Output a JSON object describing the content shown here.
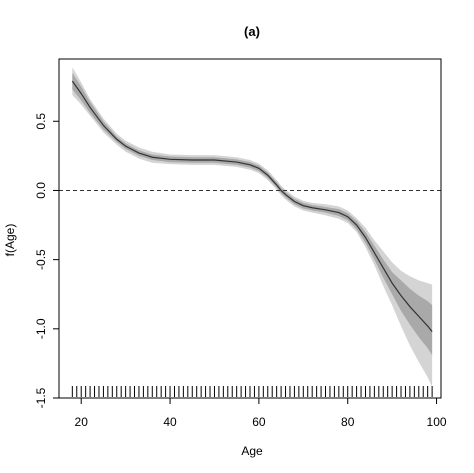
{
  "chart_data": {
    "type": "line",
    "title": "(a)",
    "xlabel": "Age",
    "ylabel": "f(Age)",
    "xlim": [
      15,
      101
    ],
    "ylim": [
      -1.5,
      0.95
    ],
    "x_ticks": [
      20,
      40,
      60,
      80,
      100
    ],
    "y_ticks": [
      -1.5,
      -1.0,
      -0.5,
      0.0,
      0.5
    ],
    "y_tick_labels": [
      "-1.5",
      "-1.0",
      "-0.5",
      "0.0",
      "0.5"
    ],
    "reference_line": {
      "y": 0,
      "style": "dashed"
    },
    "colors": {
      "outer_band": "#d4d4d4",
      "inner_band": "#a9a9a9",
      "line": "#333333"
    },
    "x": [
      18,
      20,
      22,
      25,
      28,
      30,
      33,
      36,
      40,
      45,
      50,
      55,
      58,
      60,
      62,
      64,
      65,
      66,
      68,
      70,
      72,
      75,
      78,
      80,
      82,
      84,
      86,
      88,
      90,
      92,
      94,
      96,
      98,
      99
    ],
    "fit": [
      0.79,
      0.7,
      0.6,
      0.47,
      0.37,
      0.32,
      0.27,
      0.24,
      0.225,
      0.22,
      0.22,
      0.205,
      0.185,
      0.16,
      0.11,
      0.04,
      0.0,
      -0.03,
      -0.08,
      -0.11,
      -0.125,
      -0.14,
      -0.16,
      -0.19,
      -0.25,
      -0.34,
      -0.45,
      -0.56,
      -0.67,
      -0.76,
      -0.84,
      -0.91,
      -0.98,
      -1.02
    ],
    "inner_lower": [
      0.73,
      0.65,
      0.56,
      0.44,
      0.35,
      0.3,
      0.25,
      0.22,
      0.205,
      0.2,
      0.2,
      0.185,
      0.165,
      0.14,
      0.09,
      0.02,
      -0.02,
      -0.05,
      -0.1,
      -0.13,
      -0.145,
      -0.16,
      -0.185,
      -0.215,
      -0.28,
      -0.38,
      -0.5,
      -0.63,
      -0.75,
      -0.87,
      -0.97,
      -1.06,
      -1.14,
      -1.19
    ],
    "inner_upper": [
      0.85,
      0.75,
      0.64,
      0.5,
      0.39,
      0.34,
      0.29,
      0.26,
      0.245,
      0.24,
      0.24,
      0.225,
      0.205,
      0.18,
      0.13,
      0.06,
      0.02,
      -0.01,
      -0.06,
      -0.09,
      -0.105,
      -0.12,
      -0.135,
      -0.165,
      -0.22,
      -0.3,
      -0.4,
      -0.5,
      -0.59,
      -0.65,
      -0.71,
      -0.76,
      -0.8,
      -0.83
    ],
    "outer_lower": [
      0.69,
      0.62,
      0.54,
      0.42,
      0.33,
      0.28,
      0.23,
      0.2,
      0.19,
      0.185,
      0.185,
      0.17,
      0.15,
      0.125,
      0.075,
      0.005,
      -0.035,
      -0.065,
      -0.115,
      -0.145,
      -0.16,
      -0.18,
      -0.205,
      -0.235,
      -0.3,
      -0.41,
      -0.54,
      -0.69,
      -0.83,
      -0.98,
      -1.12,
      -1.24,
      -1.35,
      -1.42
    ],
    "outer_upper": [
      0.89,
      0.78,
      0.66,
      0.52,
      0.41,
      0.36,
      0.31,
      0.28,
      0.26,
      0.255,
      0.255,
      0.24,
      0.22,
      0.195,
      0.145,
      0.075,
      0.035,
      0.005,
      -0.045,
      -0.075,
      -0.09,
      -0.1,
      -0.115,
      -0.145,
      -0.2,
      -0.27,
      -0.36,
      -0.44,
      -0.52,
      -0.58,
      -0.62,
      -0.65,
      -0.67,
      -0.68
    ],
    "rug": [
      18,
      19,
      20,
      21,
      22,
      23,
      24,
      25,
      26,
      27,
      28,
      29,
      30,
      31,
      32,
      33,
      34,
      35,
      36,
      37,
      38,
      39,
      40,
      41,
      42,
      43,
      44,
      45,
      46,
      47,
      48,
      49,
      50,
      51,
      52,
      53,
      54,
      55,
      56,
      57,
      58,
      59,
      60,
      61,
      62,
      63,
      64,
      65,
      66,
      67,
      68,
      69,
      70,
      71,
      72,
      73,
      74,
      75,
      76,
      77,
      78,
      79,
      80,
      81,
      82,
      83,
      84,
      85,
      86,
      87,
      88,
      89,
      90,
      91,
      92,
      93,
      94,
      95,
      96,
      97,
      98,
      99
    ]
  }
}
